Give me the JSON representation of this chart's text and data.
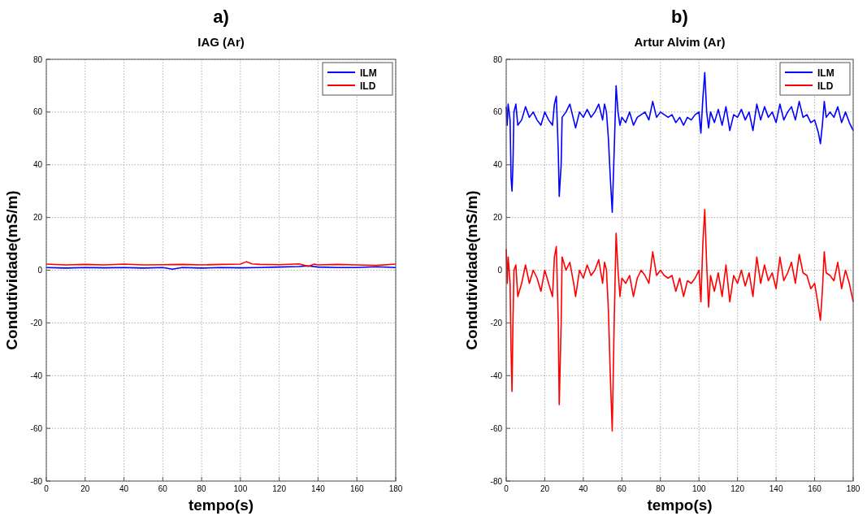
{
  "chart_data": [
    {
      "type": "line",
      "title": "a)",
      "subtitle": "IAG (Ar)",
      "xlabel": "tempo(s)",
      "ylabel": "Condutividade(mS/m)",
      "xlim": [
        0,
        180
      ],
      "ylim": [
        -80,
        80
      ],
      "xticks": [
        0,
        20,
        40,
        60,
        80,
        100,
        120,
        140,
        160,
        180
      ],
      "yticks": [
        -80,
        -60,
        -40,
        -20,
        0,
        20,
        40,
        60,
        80
      ],
      "grid": true,
      "legend": "top right",
      "line_style": "solid",
      "series": [
        {
          "name": "ILM",
          "color": "#0000ff",
          "x": [
            0,
            10,
            20,
            30,
            40,
            50,
            60,
            65,
            70,
            80,
            90,
            100,
            110,
            120,
            130,
            135,
            140,
            150,
            160,
            170,
            180
          ],
          "values": [
            1,
            0.8,
            1,
            0.9,
            1,
            0.8,
            1,
            0.4,
            1,
            0.8,
            1,
            0.9,
            1,
            1.2,
            1.4,
            1.6,
            1.2,
            1,
            1,
            1.3,
            1
          ]
        },
        {
          "name": "ILD",
          "color": "#ff0000",
          "x": [
            0,
            10,
            20,
            30,
            40,
            50,
            60,
            70,
            80,
            90,
            100,
            103,
            106,
            110,
            120,
            130,
            135,
            138,
            140,
            150,
            160,
            170,
            180
          ],
          "values": [
            2.3,
            2,
            2.2,
            2,
            2.3,
            2,
            2.1,
            2.2,
            2,
            2.2,
            2.3,
            3.2,
            2.4,
            2.2,
            2.1,
            2.4,
            1.5,
            2.3,
            2,
            2.2,
            2,
            1.8,
            2.3
          ]
        }
      ]
    },
    {
      "type": "line",
      "title": "b)",
      "subtitle": "Artur Alvim (Ar)",
      "xlabel": "tempo(s)",
      "ylabel": "Condutividade(mS/m)",
      "xlim": [
        0,
        180
      ],
      "ylim": [
        -80,
        80
      ],
      "xticks": [
        0,
        20,
        40,
        60,
        80,
        100,
        120,
        140,
        160,
        180
      ],
      "yticks": [
        -80,
        -60,
        -40,
        -20,
        0,
        20,
        40,
        60,
        80
      ],
      "grid": true,
      "legend": "top right",
      "line_style": "solid",
      "series": [
        {
          "name": "ILM",
          "color": "#0000ff",
          "x": [
            0,
            0.5,
            1,
            2,
            2.5,
            3,
            3.5,
            4,
            5,
            6,
            8,
            10,
            12,
            14,
            16,
            18,
            20,
            22,
            24,
            25,
            26,
            27,
            27.5,
            28.5,
            29,
            31,
            33,
            35,
            36,
            38,
            40,
            42,
            44,
            46,
            48,
            50,
            51,
            52,
            53,
            54,
            55,
            56,
            57,
            58,
            59,
            60,
            62,
            64,
            66,
            68,
            70,
            72,
            74,
            76,
            78,
            80,
            82,
            84,
            86,
            88,
            90,
            92,
            94,
            96,
            98,
            100,
            101,
            102,
            103,
            104,
            105,
            106,
            108,
            110,
            112,
            114,
            116,
            118,
            120,
            122,
            124,
            126,
            128,
            130,
            132,
            134,
            136,
            138,
            140,
            142,
            144,
            146,
            148,
            150,
            152,
            154,
            156,
            158,
            160,
            162,
            163,
            164,
            165,
            166,
            168,
            170,
            172,
            174,
            176,
            178,
            180
          ],
          "values": [
            62,
            55,
            63,
            57,
            35,
            30,
            40,
            60,
            63,
            55,
            57,
            62,
            58,
            60,
            57,
            55,
            60,
            57,
            55,
            63,
            66,
            45,
            28,
            40,
            58,
            60,
            63,
            57,
            54,
            60,
            58,
            61,
            58,
            60,
            63,
            57,
            63,
            60,
            50,
            35,
            22,
            45,
            70,
            60,
            55,
            58,
            56,
            60,
            55,
            58,
            59,
            60,
            57,
            64,
            58,
            60,
            59,
            58,
            59,
            56,
            58,
            55,
            58,
            57,
            59,
            60,
            52,
            65,
            75,
            60,
            54,
            60,
            56,
            61,
            55,
            62,
            53,
            59,
            58,
            61,
            57,
            60,
            53,
            63,
            57,
            62,
            58,
            60,
            56,
            63,
            57,
            60,
            62,
            57,
            64,
            58,
            59,
            56,
            57,
            52,
            48,
            55,
            64,
            58,
            60,
            58,
            62,
            56,
            60,
            56,
            53
          ]
        },
        {
          "name": "ILD",
          "color": "#ff0000",
          "x": [
            0,
            0.5,
            1,
            2,
            2.5,
            3,
            3.5,
            4,
            5,
            6,
            8,
            10,
            12,
            14,
            16,
            18,
            20,
            22,
            24,
            25,
            26,
            27,
            27.5,
            28.5,
            29,
            31,
            33,
            35,
            36,
            38,
            40,
            42,
            44,
            46,
            48,
            50,
            51,
            52,
            53,
            54,
            55,
            56,
            57,
            58,
            59,
            60,
            62,
            64,
            66,
            68,
            70,
            72,
            74,
            76,
            78,
            80,
            82,
            84,
            86,
            88,
            90,
            92,
            94,
            96,
            98,
            100,
            101,
            102,
            103,
            104,
            105,
            106,
            108,
            110,
            112,
            114,
            116,
            118,
            120,
            122,
            124,
            126,
            128,
            130,
            132,
            134,
            136,
            138,
            140,
            142,
            144,
            146,
            148,
            150,
            152,
            154,
            156,
            158,
            160,
            162,
            163,
            164,
            165,
            166,
            168,
            170,
            172,
            174,
            176,
            178,
            180
          ],
          "values": [
            8,
            -5,
            5,
            -5,
            -30,
            -46,
            -20,
            0,
            2,
            -10,
            -5,
            2,
            -5,
            0,
            -3,
            -8,
            0,
            -5,
            -10,
            5,
            9,
            -20,
            -51,
            -20,
            5,
            0,
            3,
            -5,
            -10,
            0,
            -3,
            2,
            -2,
            0,
            4,
            -5,
            3,
            0,
            -15,
            -40,
            -61,
            -20,
            14,
            0,
            -10,
            -3,
            -5,
            -2,
            -10,
            -3,
            0,
            -2,
            -5,
            7,
            -2,
            0,
            -2,
            -3,
            -2,
            -8,
            -3,
            -10,
            -4,
            -5,
            -3,
            0,
            -12,
            10,
            23,
            2,
            -14,
            -2,
            -8,
            -1,
            -10,
            2,
            -12,
            -2,
            -5,
            0,
            -6,
            -1,
            -10,
            5,
            -5,
            2,
            -4,
            -1,
            -7,
            5,
            -4,
            -1,
            3,
            -5,
            6,
            -1,
            -2,
            -7,
            -5,
            -14,
            -19,
            -8,
            7,
            -1,
            -2,
            -4,
            3,
            -7,
            0,
            -5,
            -12
          ]
        }
      ]
    }
  ]
}
